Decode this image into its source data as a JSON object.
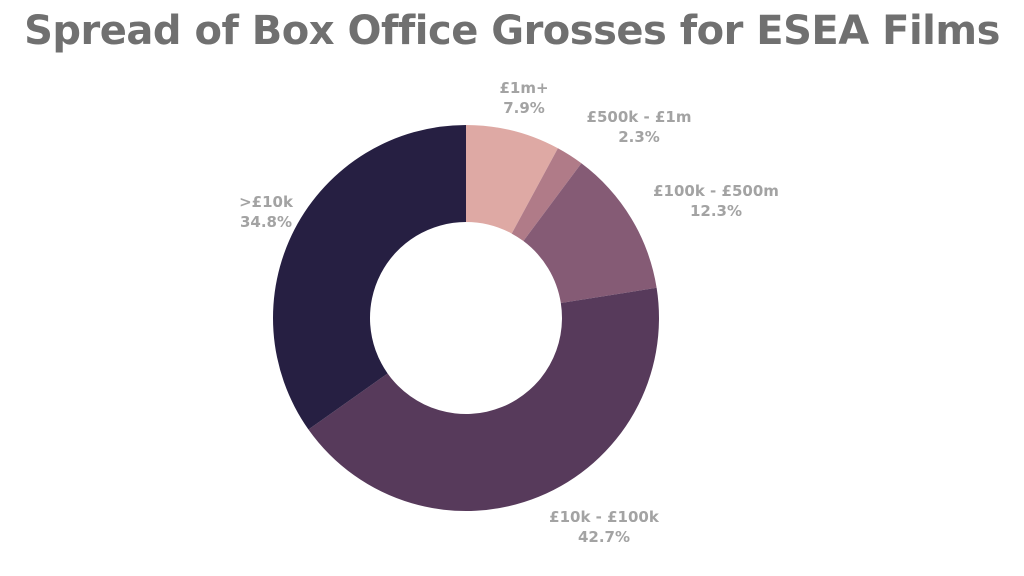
{
  "chart_data": {
    "type": "pie",
    "title": "Spread of Box Office Grosses for ESEA Films",
    "donut": true,
    "categories": [
      "£1m+",
      "£500k - £1m",
      "£100k - £500m",
      "£10k - £100k",
      ">£10k"
    ],
    "values": [
      7.9,
      2.3,
      12.3,
      42.7,
      34.8
    ],
    "value_labels": [
      "7.9%",
      "2.3%",
      "12.3%",
      "42.7%",
      "34.8%"
    ],
    "colors": [
      "#dea9a4",
      "#b07b88",
      "#855b75",
      "#573a5b",
      "#261f42"
    ],
    "legend": "none"
  }
}
